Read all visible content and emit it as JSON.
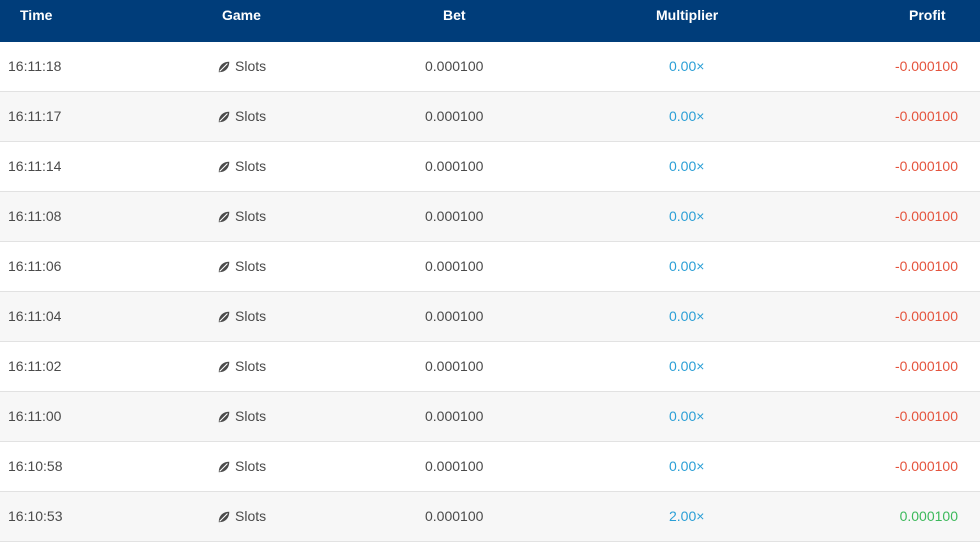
{
  "header": {
    "time": "Time",
    "game": "Game",
    "bet": "Bet",
    "multiplier": "Multiplier",
    "profit": "Profit"
  },
  "colors": {
    "header_bg": "#003d7a",
    "multiplier": "#2a9fd6",
    "profit_negative": "#e5533c",
    "profit_positive": "#3cb95b"
  },
  "game_icon": "leaf-icon",
  "rows": [
    {
      "time": "16:11:18",
      "game": "Slots",
      "bet": "0.000100",
      "multiplier": "0.00×",
      "profit": "-0.000100",
      "profit_sign": "neg"
    },
    {
      "time": "16:11:17",
      "game": "Slots",
      "bet": "0.000100",
      "multiplier": "0.00×",
      "profit": "-0.000100",
      "profit_sign": "neg"
    },
    {
      "time": "16:11:14",
      "game": "Slots",
      "bet": "0.000100",
      "multiplier": "0.00×",
      "profit": "-0.000100",
      "profit_sign": "neg"
    },
    {
      "time": "16:11:08",
      "game": "Slots",
      "bet": "0.000100",
      "multiplier": "0.00×",
      "profit": "-0.000100",
      "profit_sign": "neg"
    },
    {
      "time": "16:11:06",
      "game": "Slots",
      "bet": "0.000100",
      "multiplier": "0.00×",
      "profit": "-0.000100",
      "profit_sign": "neg"
    },
    {
      "time": "16:11:04",
      "game": "Slots",
      "bet": "0.000100",
      "multiplier": "0.00×",
      "profit": "-0.000100",
      "profit_sign": "neg"
    },
    {
      "time": "16:11:02",
      "game": "Slots",
      "bet": "0.000100",
      "multiplier": "0.00×",
      "profit": "-0.000100",
      "profit_sign": "neg"
    },
    {
      "time": "16:11:00",
      "game": "Slots",
      "bet": "0.000100",
      "multiplier": "0.00×",
      "profit": "-0.000100",
      "profit_sign": "neg"
    },
    {
      "time": "16:10:58",
      "game": "Slots",
      "bet": "0.000100",
      "multiplier": "0.00×",
      "profit": "-0.000100",
      "profit_sign": "neg"
    },
    {
      "time": "16:10:53",
      "game": "Slots",
      "bet": "0.000100",
      "multiplier": "2.00×",
      "profit": "0.000100",
      "profit_sign": "pos"
    }
  ]
}
